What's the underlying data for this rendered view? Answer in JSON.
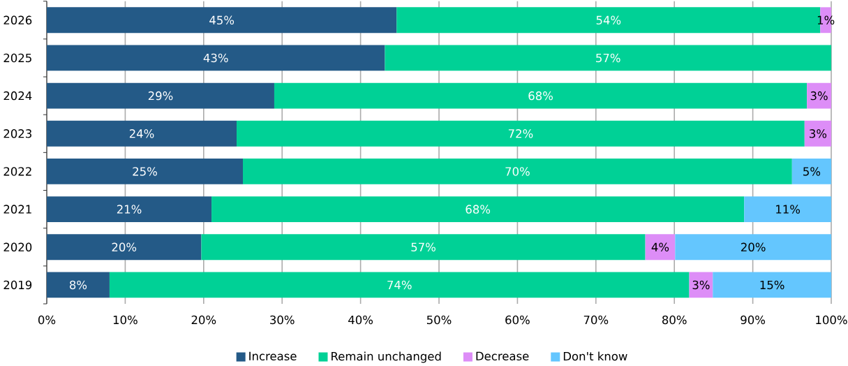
{
  "chart_data": {
    "type": "bar",
    "orientation": "horizontal",
    "stacked": true,
    "categories": [
      "2026",
      "2025",
      "2024",
      "2023",
      "2022",
      "2021",
      "2020",
      "2019"
    ],
    "series": [
      {
        "name": "Increase",
        "color": "#245a87",
        "values": [
          44.6,
          43.1,
          29.0,
          24.2,
          25.0,
          21.0,
          19.7,
          8.0
        ],
        "value_labels": [
          "45%",
          "43%",
          "29%",
          "24%",
          "25%",
          "21%",
          "20%",
          "8%"
        ]
      },
      {
        "name": "Remain unchanged",
        "color": "#00d196",
        "values": [
          54.0,
          56.9,
          67.9,
          72.4,
          70.0,
          67.9,
          56.6,
          73.9
        ],
        "value_labels": [
          "54%",
          "57%",
          "68%",
          "72%",
          "70%",
          "68%",
          "57%",
          "74%"
        ]
      },
      {
        "name": "Decrease",
        "color": "#dd8df7",
        "values": [
          1.4,
          null,
          3.1,
          3.4,
          null,
          null,
          3.8,
          3.0
        ],
        "value_labels": [
          "1%",
          null,
          "3%",
          "3%",
          null,
          null,
          "4%",
          "3%"
        ]
      },
      {
        "name": "Don't know",
        "color": "#64c6fe",
        "values": [
          null,
          null,
          null,
          null,
          5.0,
          11.1,
          19.9,
          15.1
        ],
        "value_labels": [
          null,
          null,
          null,
          null,
          "5%",
          "11%",
          "20%",
          "15%"
        ]
      }
    ],
    "xlim": [
      0,
      100
    ],
    "xticks": [
      {
        "value": 0,
        "label": "0%"
      },
      {
        "value": 10,
        "label": "10%"
      },
      {
        "value": 20,
        "label": "20%"
      },
      {
        "value": 30,
        "label": "30%"
      },
      {
        "value": 40,
        "label": "40%"
      },
      {
        "value": 50,
        "label": "50%"
      },
      {
        "value": 60,
        "label": "60%"
      },
      {
        "value": 70,
        "label": "70%"
      },
      {
        "value": 80,
        "label": "80%"
      },
      {
        "value": 90,
        "label": "90%"
      },
      {
        "value": 100,
        "label": "100%"
      }
    ],
    "grid": "x",
    "legend": "bottom"
  }
}
